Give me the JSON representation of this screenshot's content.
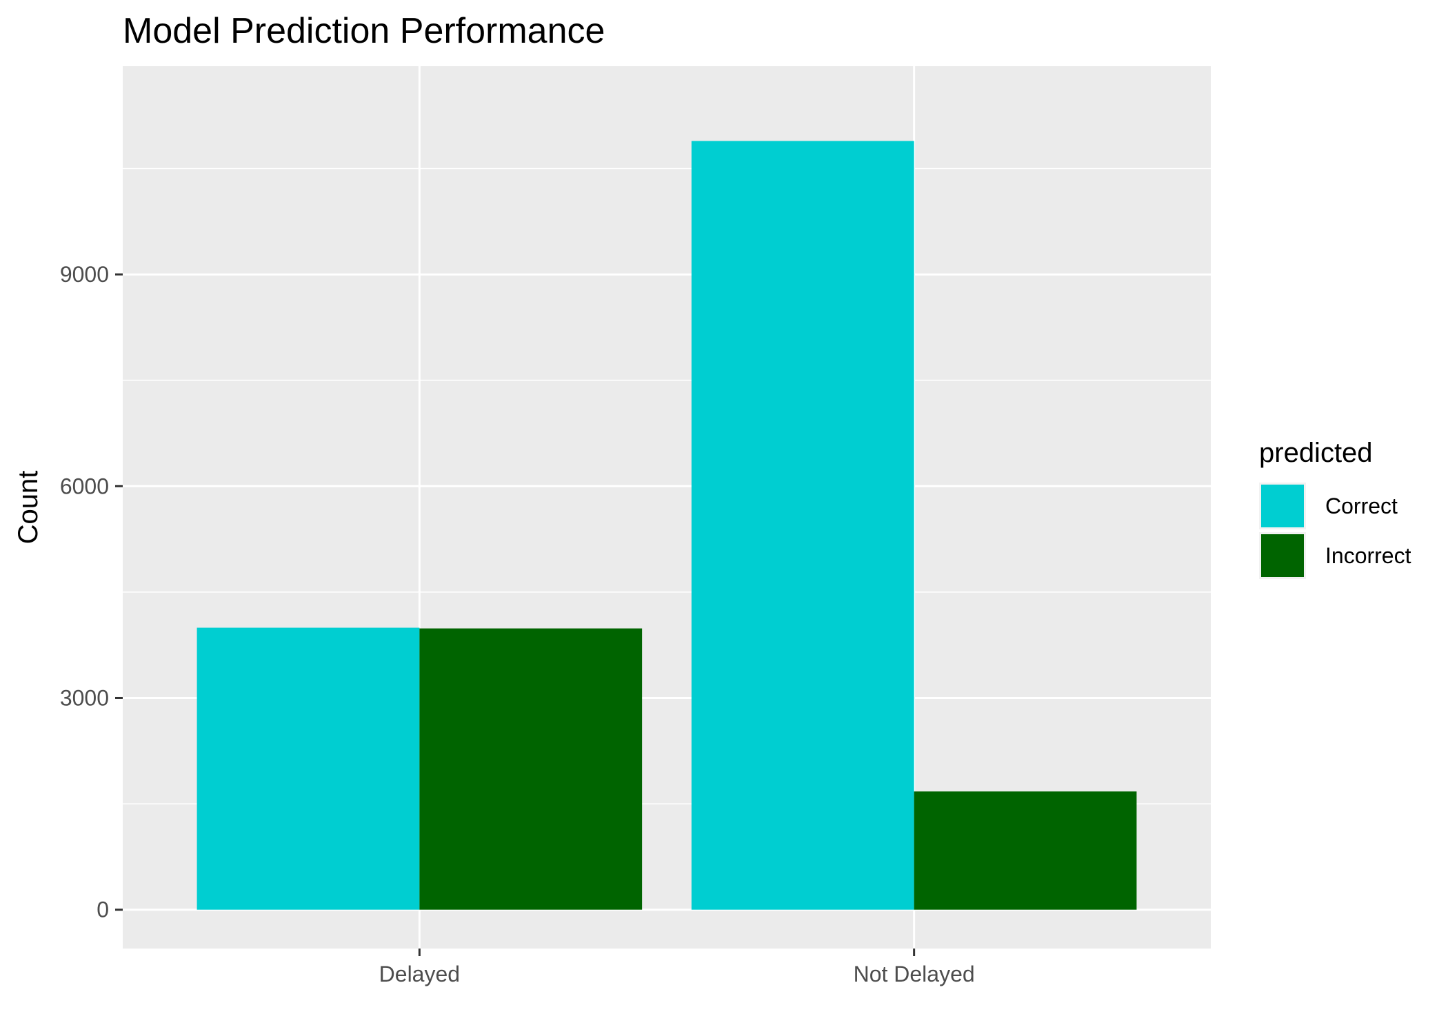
{
  "chart_data": {
    "type": "bar",
    "title": "Model Prediction Performance",
    "xlabel": "",
    "ylabel": "Count",
    "categories": [
      "Delayed",
      "Not Delayed"
    ],
    "series": [
      {
        "name": "Correct",
        "color": "#00CED1",
        "values": [
          3995,
          10890
        ]
      },
      {
        "name": "Incorrect",
        "color": "#006400",
        "values": [
          3985,
          1675
        ]
      }
    ],
    "ylim": [
      -550,
      11950
    ],
    "yticks": [
      0,
      3000,
      6000,
      9000
    ],
    "y_minor_ticks": [
      1500,
      4500,
      7500,
      10500
    ],
    "legend": {
      "title": "predicted",
      "position": "right"
    },
    "grid": true,
    "panel_color": "#EBEBEB"
  }
}
